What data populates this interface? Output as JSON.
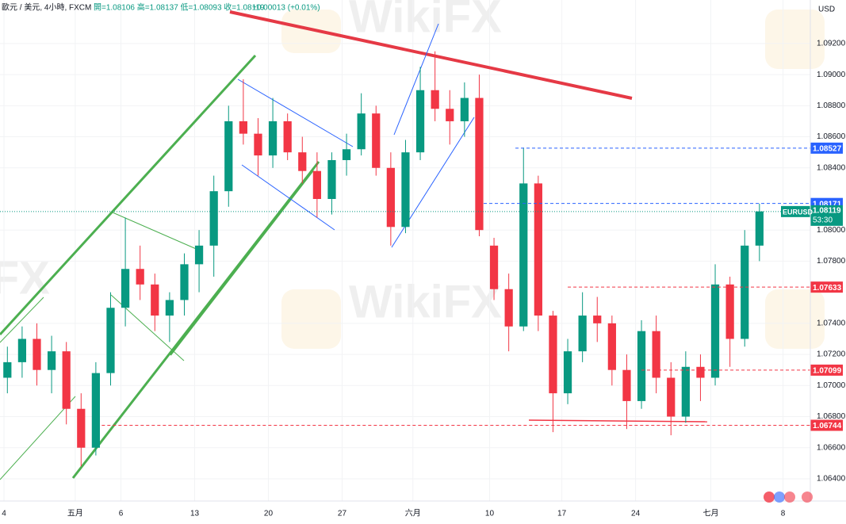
{
  "header": {
    "symbol": "歐元 / 美元, 4小時, FXCM",
    "ohlc": "開=1.08106 高=1.08137 低=1.08093 收=1.08119",
    "change": "+0.00013 (+0.01%)"
  },
  "watermark": "WikiFX",
  "chart_data": {
    "type": "candlestick",
    "currency": "USD",
    "symbol_label": "EURUSD",
    "last_price": 1.08119,
    "countdown": "53:30",
    "up_color": "#089981",
    "down_color": "#f23645",
    "x": [
      0.5,
      1.5,
      2.5,
      3.5,
      4.5,
      5.5,
      6.5,
      7.5,
      8.5,
      9.5,
      10.5,
      11.5,
      12.5,
      13.5,
      14.5,
      15.5,
      16.5,
      17.5,
      18.5,
      19.5,
      20.5,
      21.5,
      22.5,
      23.5,
      24.5,
      25.5,
      26.5,
      27.5,
      28.5,
      29.5,
      30.5,
      31.5,
      32.5,
      33.5,
      34.5,
      35.5,
      36.5,
      37.5,
      38.5,
      39.5,
      40.5,
      41.5,
      42.5,
      43.5,
      44.5,
      45.5,
      46.5,
      47.5,
      48.5,
      49.5,
      50.5,
      51.5
    ],
    "open": [
      1.0705,
      1.0715,
      1.073,
      1.071,
      1.0722,
      1.0685,
      1.066,
      1.0708,
      1.075,
      1.0775,
      1.0765,
      1.0745,
      1.0755,
      1.0778,
      1.079,
      1.0825,
      1.087,
      1.0862,
      1.0848,
      1.087,
      1.085,
      1.0838,
      1.082,
      1.0845,
      1.0852,
      1.0875,
      1.084,
      1.0802,
      1.085,
      1.089,
      1.0878,
      1.087,
      1.0885,
      1.079,
      1.0762,
      1.0738,
      1.083,
      1.0745,
      1.0695,
      1.0722,
      1.0745,
      1.074,
      1.071,
      1.069,
      1.0735,
      1.0705,
      1.068,
      1.0712,
      1.0705,
      1.0765,
      1.073,
      1.079
    ],
    "high": [
      1.0725,
      1.0738,
      1.074,
      1.0732,
      1.0728,
      1.0695,
      1.0715,
      1.076,
      1.0808,
      1.079,
      1.0772,
      1.076,
      1.0785,
      1.08,
      1.0835,
      1.088,
      1.0897,
      1.0872,
      1.0885,
      1.0875,
      1.086,
      1.085,
      1.085,
      1.0862,
      1.0888,
      1.088,
      1.085,
      1.0858,
      1.0905,
      1.0915,
      1.089,
      1.0895,
      1.09,
      1.0795,
      1.0772,
      1.0853,
      1.0835,
      1.0748,
      1.073,
      1.076,
      1.0757,
      1.0745,
      1.072,
      1.0742,
      1.0745,
      1.0715,
      1.0722,
      1.072,
      1.0778,
      1.077,
      1.08,
      1.0817
    ],
    "low": [
      1.0695,
      1.0705,
      1.07,
      1.0695,
      1.0675,
      1.0648,
      1.0655,
      1.07,
      1.0738,
      1.0755,
      1.0735,
      1.0728,
      1.0745,
      1.076,
      1.077,
      1.0815,
      1.0855,
      1.0835,
      1.084,
      1.0845,
      1.083,
      1.0808,
      1.081,
      1.0835,
      1.0848,
      1.0835,
      1.079,
      1.0798,
      1.0845,
      1.087,
      1.0855,
      1.086,
      1.0796,
      1.0755,
      1.0722,
      1.0735,
      1.0735,
      1.067,
      1.0688,
      1.0715,
      1.0728,
      1.07,
      1.0672,
      1.0685,
      1.0695,
      1.0668,
      1.0676,
      1.069,
      1.07,
      1.0712,
      1.0725,
      1.078
    ],
    "close": [
      1.0715,
      1.073,
      1.071,
      1.0722,
      1.0685,
      1.066,
      1.0708,
      1.075,
      1.0775,
      1.0765,
      1.0745,
      1.0755,
      1.0778,
      1.079,
      1.0825,
      1.087,
      1.0862,
      1.0848,
      1.087,
      1.085,
      1.0838,
      1.082,
      1.0845,
      1.0852,
      1.0875,
      1.084,
      1.0802,
      1.085,
      1.089,
      1.0878,
      1.087,
      1.0885,
      1.08,
      1.0762,
      1.0738,
      1.083,
      1.0745,
      1.0695,
      1.0722,
      1.0745,
      1.074,
      1.071,
      1.069,
      1.0735,
      1.0705,
      1.068,
      1.0712,
      1.0705,
      1.0765,
      1.073,
      1.079,
      1.0812
    ],
    "xlim": [
      0,
      54.95
    ],
    "xticks": [
      {
        "value": 0.27,
        "label": "4"
      },
      {
        "value": 5.1,
        "label": "五月"
      },
      {
        "value": 8.2,
        "label": "6"
      },
      {
        "value": 13.2,
        "label": "13"
      },
      {
        "value": 18.2,
        "label": "20"
      },
      {
        "value": 23.2,
        "label": "27"
      },
      {
        "value": 28.0,
        "label": "六月"
      },
      {
        "value": 33.2,
        "label": "10"
      },
      {
        "value": 38.1,
        "label": "17"
      },
      {
        "value": 43.1,
        "label": "24"
      },
      {
        "value": 48.2,
        "label": "七月"
      },
      {
        "value": 53.1,
        "label": "8"
      }
    ],
    "ylim": [
      1.06257,
      1.0948
    ],
    "yticks": [
      {
        "value": 1.092,
        "label": "1.09200"
      },
      {
        "value": 1.09,
        "label": "1.09000"
      },
      {
        "value": 1.088,
        "label": "1.08800"
      },
      {
        "value": 1.086,
        "label": "1.08600"
      },
      {
        "value": 1.084,
        "label": "1.08400"
      },
      {
        "value": 1.08,
        "label": "1.08000"
      },
      {
        "value": 1.078,
        "label": "1.07800"
      },
      {
        "value": 1.074,
        "label": "1.07400"
      },
      {
        "value": 1.072,
        "label": "1.07200"
      },
      {
        "value": 1.07,
        "label": "1.07000"
      },
      {
        "value": 1.068,
        "label": "1.06800"
      },
      {
        "value": 1.066,
        "label": "1.06600"
      },
      {
        "value": 1.064,
        "label": "1.06400"
      }
    ],
    "price_lines": [
      {
        "value": 1.08527,
        "color": "#2962ff",
        "start": 34.95
      },
      {
        "value": 1.08171,
        "color": "#2962ff",
        "start": 32.8
      },
      {
        "value": 1.07633,
        "color": "#f23645",
        "start": 38.5
      },
      {
        "value": 1.07099,
        "color": "#f23645",
        "start": 43.5
      },
      {
        "value": 1.06744,
        "color": "#f23645",
        "start": 6.9
      }
    ]
  }
}
